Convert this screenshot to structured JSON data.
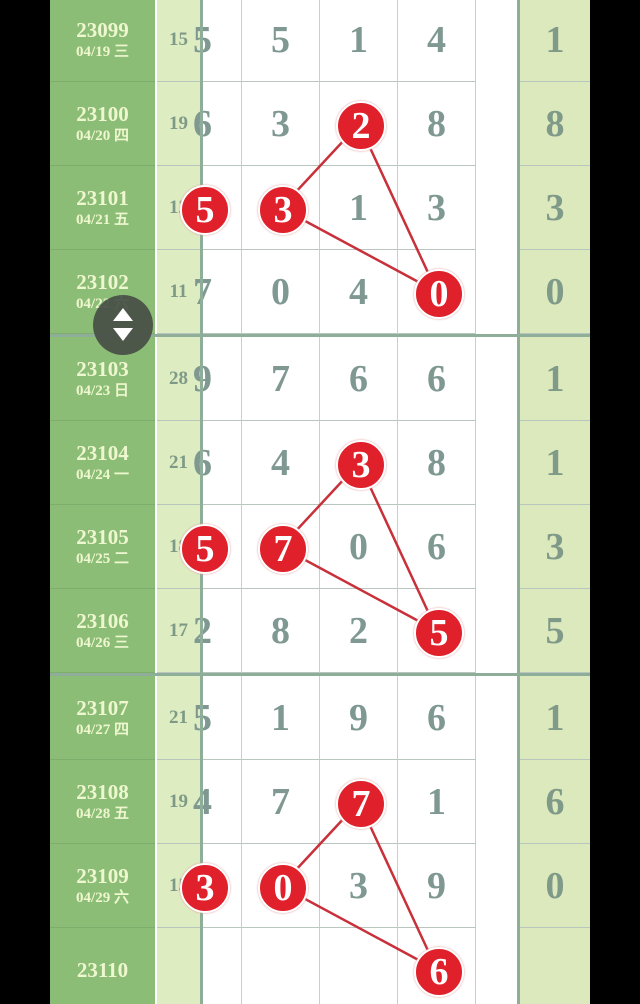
{
  "colors": {
    "issue_bg": "#8cbd76",
    "ball": "#e0202a",
    "line": "#c8303a",
    "digit": "#7f9892"
  },
  "rows": [
    {
      "issue": "23099",
      "date": "04/19 三",
      "sum": "15",
      "digits": [
        "5",
        "5",
        "1",
        "4"
      ],
      "last": "1",
      "hits": []
    },
    {
      "issue": "23100",
      "date": "04/20 四",
      "sum": "19",
      "digits": [
        "6",
        "3",
        "2",
        "8"
      ],
      "last": "8",
      "hits": [
        2
      ]
    },
    {
      "issue": "23101",
      "date": "04/21 五",
      "sum": "12",
      "digits": [
        "5",
        "3",
        "1",
        "3"
      ],
      "last": "3",
      "hits": [
        0,
        1
      ]
    },
    {
      "issue": "23102",
      "date": "04/22 六",
      "sum": "11",
      "digits": [
        "7",
        "0",
        "4",
        "0"
      ],
      "last": "0",
      "hits": [
        3
      ]
    },
    {
      "issue": "23103",
      "date": "04/23 日",
      "sum": "28",
      "digits": [
        "9",
        "7",
        "6",
        "6"
      ],
      "last": "1",
      "hits": []
    },
    {
      "issue": "23104",
      "date": "04/24 一",
      "sum": "21",
      "digits": [
        "6",
        "4",
        "3",
        "8"
      ],
      "last": "1",
      "hits": [
        2
      ]
    },
    {
      "issue": "23105",
      "date": "04/25 二",
      "sum": "18",
      "digits": [
        "5",
        "7",
        "0",
        "6"
      ],
      "last": "3",
      "hits": [
        0,
        1
      ]
    },
    {
      "issue": "23106",
      "date": "04/26 三",
      "sum": "17",
      "digits": [
        "2",
        "8",
        "2",
        "5"
      ],
      "last": "5",
      "hits": [
        3
      ]
    },
    {
      "issue": "23107",
      "date": "04/27 四",
      "sum": "21",
      "digits": [
        "5",
        "1",
        "9",
        "6"
      ],
      "last": "1",
      "hits": []
    },
    {
      "issue": "23108",
      "date": "04/28 五",
      "sum": "19",
      "digits": [
        "4",
        "7",
        "7",
        "1"
      ],
      "last": "6",
      "hits": [
        2
      ]
    },
    {
      "issue": "23109",
      "date": "04/29 六",
      "sum": "15",
      "digits": [
        "3",
        "0",
        "3",
        "9"
      ],
      "last": "0",
      "hits": [
        0,
        1
      ]
    },
    {
      "issue": "23110",
      "date": "",
      "sum": "",
      "digits": [
        "",
        "",
        "",
        "6"
      ],
      "last": "",
      "hits": [
        3
      ]
    }
  ],
  "scroll_button": {
    "icon": "up-down-arrows-icon"
  }
}
